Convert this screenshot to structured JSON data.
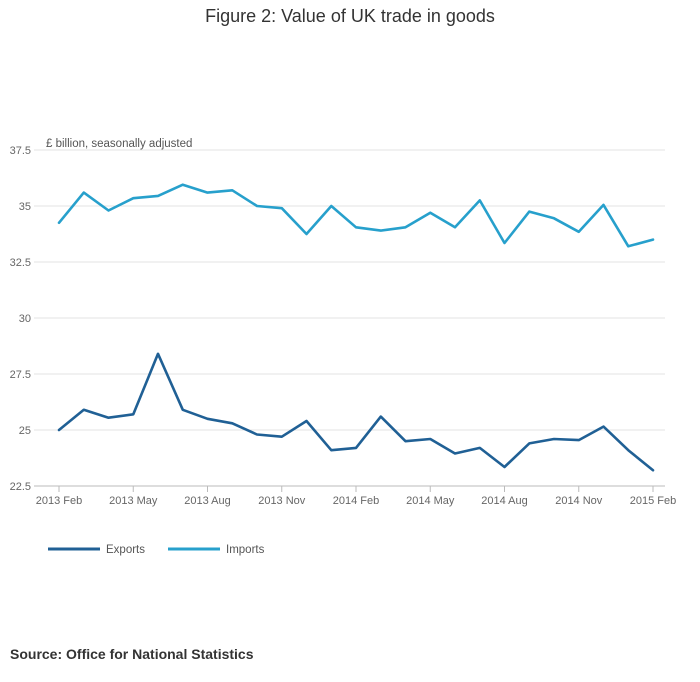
{
  "chart_data": {
    "type": "line",
    "title": "Figure 2: Value of UK trade in goods",
    "unit_label": "£ billion, seasonally adjusted",
    "source": "Source: Office for National Statistics",
    "ylim": [
      22.5,
      37.5
    ],
    "y_ticks": [
      "22.5",
      "25",
      "27.5",
      "30",
      "32.5",
      "35",
      "37.5"
    ],
    "x_tick_labels": [
      "2013 Feb",
      "2013 May",
      "2013 Aug",
      "2013 Nov",
      "2014 Feb",
      "2014 May",
      "2014 Aug",
      "2014 Nov",
      "2015 Feb"
    ],
    "x": [
      "2013 Feb",
      "2013 Mar",
      "2013 Apr",
      "2013 May",
      "2013 Jun",
      "2013 Jul",
      "2013 Aug",
      "2013 Sep",
      "2013 Oct",
      "2013 Nov",
      "2013 Dec",
      "2014 Jan",
      "2014 Feb",
      "2014 Mar",
      "2014 Apr",
      "2014 May",
      "2014 Jun",
      "2014 Jul",
      "2014 Aug",
      "2014 Sep",
      "2014 Oct",
      "2014 Nov",
      "2014 Dec",
      "2015 Jan",
      "2015 Feb"
    ],
    "grid": true,
    "legend_position": "bottom-left",
    "series": [
      {
        "name": "Exports",
        "color": "#206095",
        "values": [
          25.0,
          25.9,
          25.55,
          25.7,
          28.4,
          25.9,
          25.5,
          25.3,
          24.8,
          24.7,
          25.4,
          24.1,
          24.2,
          25.6,
          24.5,
          24.6,
          23.95,
          24.2,
          23.35,
          24.4,
          24.6,
          24.55,
          25.15,
          24.1,
          23.2
        ]
      },
      {
        "name": "Imports",
        "color": "#27a0cc",
        "values": [
          34.25,
          35.6,
          34.8,
          35.35,
          35.45,
          35.95,
          35.6,
          35.7,
          35.0,
          34.9,
          33.75,
          35.0,
          34.05,
          33.9,
          34.05,
          34.7,
          34.05,
          35.25,
          33.35,
          34.75,
          34.45,
          33.85,
          35.05,
          33.2,
          33.5
        ]
      }
    ]
  }
}
